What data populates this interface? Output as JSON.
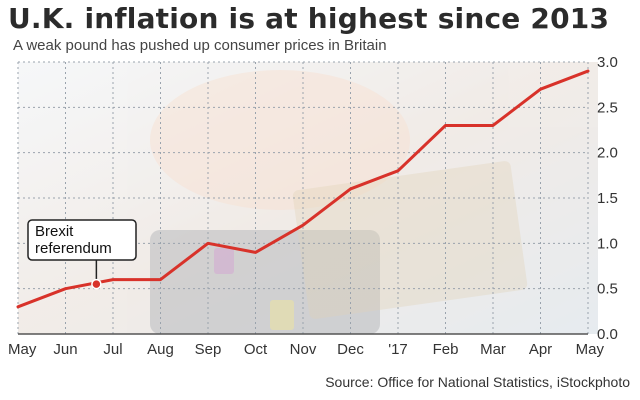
{
  "colors": {
    "line": "#d8322a",
    "grid": "#9aa3ad",
    "text": "#333333",
    "background_photo": "#d9dfe6"
  },
  "chart_data": {
    "type": "line",
    "title": "U.K. inflation is at highest since 2013",
    "subtitle": "A weak pound has pushed up consumer prices in Britain",
    "source": "Source: Office for National Statistics, iStockphoto",
    "categories": [
      "May",
      "Jun",
      "Jul",
      "Aug",
      "Sep",
      "Oct",
      "Nov",
      "Dec",
      "'17",
      "Feb",
      "Mar",
      "Apr",
      "May"
    ],
    "series": [
      {
        "values": [
          0.3,
          0.5,
          0.6,
          0.6,
          1.0,
          0.9,
          1.2,
          1.6,
          1.8,
          2.3,
          2.3,
          2.7,
          2.9
        ]
      }
    ],
    "ylim": [
      0,
      3.0
    ],
    "yticks": [
      0.0,
      0.5,
      1.0,
      1.5,
      2.0,
      2.5,
      3.0
    ],
    "ytick_labels": [
      "0.0",
      "0.5",
      "1.0",
      "1.5",
      "2.0",
      "2.5",
      "3.0"
    ],
    "grid": true,
    "annotation": {
      "text_lines": [
        "Brexit",
        "referendum"
      ],
      "category_index": 1.65,
      "value": 0.55
    }
  }
}
